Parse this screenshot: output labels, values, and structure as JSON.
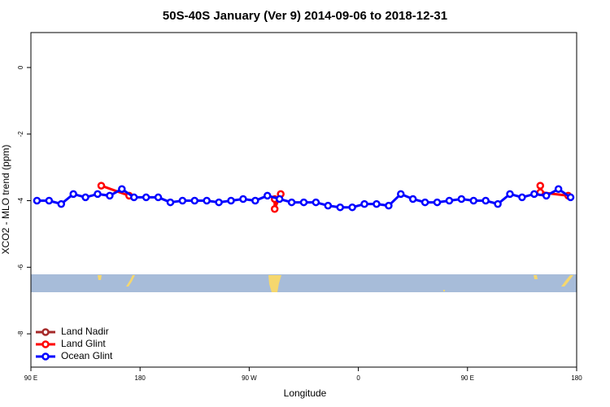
{
  "chart_data": {
    "type": "line",
    "title": "50S-40S January (Ver 9)   2014-09-06 to 2018-12-31",
    "xlabel": "Longitude",
    "ylabel": "XCO2 - MLO trend (ppm)",
    "xlim": [
      90,
      540
    ],
    "ylim": [
      -9,
      1.05
    ],
    "xticks": [
      {
        "value": 90,
        "label": "90 E"
      },
      180,
      {
        "value": 270,
        "label": "90 W"
      },
      {
        "value": 360,
        "label": "0"
      },
      {
        "value": 450,
        "label": "90 E"
      },
      {
        "value": 540,
        "label": "180"
      }
    ],
    "yticks": [
      0,
      -2,
      -4,
      -6,
      -8
    ],
    "legend": "bottom-left",
    "series": [
      {
        "name": "Land Nadir",
        "color": "#a52a2a",
        "x": [],
        "values": []
      },
      {
        "name": "Land Glint",
        "color": "#ff0000",
        "x": [
          148,
          171,
          180,
          291,
          291,
          296,
          305,
          510,
          510,
          533
        ],
        "values": [
          -3.55,
          -3.85,
          null,
          -3.95,
          -4.25,
          -3.8,
          null,
          -3.55,
          -3.75,
          -3.85
        ]
      },
      {
        "name": "Ocean Glint",
        "color": "#0000ff",
        "x": [
          95,
          105,
          115,
          125,
          135,
          145,
          155,
          165,
          175,
          185,
          195,
          205,
          215,
          225,
          235,
          245,
          255,
          265,
          275,
          285,
          295,
          305,
          315,
          325,
          335,
          345,
          355,
          365,
          375,
          385,
          395,
          405,
          415,
          425,
          435,
          445,
          455,
          465,
          475,
          485,
          495,
          505,
          515,
          525,
          535
        ],
        "values": [
          -4.0,
          -4.0,
          -4.1,
          -3.8,
          -3.9,
          -3.8,
          -3.85,
          -3.65,
          -3.9,
          -3.9,
          -3.9,
          -4.05,
          -4.0,
          -4.0,
          -4.0,
          -4.05,
          -4.0,
          -3.95,
          -4.0,
          -3.85,
          -3.95,
          -4.05,
          -4.05,
          -4.05,
          -4.15,
          -4.2,
          -4.2,
          -4.1,
          -4.1,
          -4.15,
          -3.8,
          -3.95,
          -4.05,
          -4.05,
          -4.0,
          -3.95,
          -4.0,
          -4.0,
          -4.1,
          -3.8,
          -3.9,
          -3.8,
          -3.85,
          -3.65,
          -3.9
        ]
      }
    ]
  }
}
